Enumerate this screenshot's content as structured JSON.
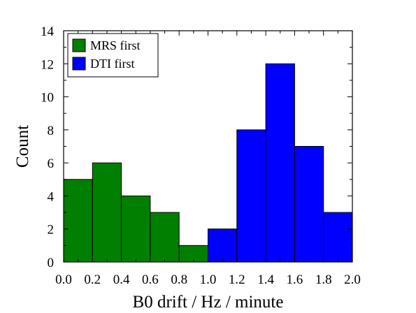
{
  "chart_data": {
    "type": "bar",
    "xlabel": "B0 drift / Hz / minute",
    "ylabel": "Count",
    "xlim": [
      0.0,
      2.0
    ],
    "ylim": [
      0,
      14
    ],
    "bin_width": 0.2,
    "x_ticks": [
      "0.0",
      "0.2",
      "0.4",
      "0.6",
      "0.8",
      "1.0",
      "1.2",
      "1.4",
      "1.6",
      "1.8",
      "2.0"
    ],
    "y_ticks": [
      "0",
      "2",
      "4",
      "6",
      "8",
      "10",
      "12",
      "14"
    ],
    "legend_position": "top-left",
    "grid": false,
    "series": [
      {
        "name": "MRS first",
        "color": "#007f00",
        "bins": [
          {
            "start": 0.0,
            "end": 0.2,
            "count": 5
          },
          {
            "start": 0.2,
            "end": 0.4,
            "count": 6
          },
          {
            "start": 0.4,
            "end": 0.6,
            "count": 4
          },
          {
            "start": 0.6,
            "end": 0.8,
            "count": 3
          },
          {
            "start": 0.8,
            "end": 1.0,
            "count": 1
          }
        ]
      },
      {
        "name": "DTI first",
        "color": "#0000ff",
        "bins": [
          {
            "start": 1.0,
            "end": 1.2,
            "count": 2
          },
          {
            "start": 1.2,
            "end": 1.4,
            "count": 8
          },
          {
            "start": 1.4,
            "end": 1.6,
            "count": 12
          },
          {
            "start": 1.6,
            "end": 1.8,
            "count": 7
          },
          {
            "start": 1.8,
            "end": 2.0,
            "count": 3
          }
        ]
      }
    ]
  }
}
